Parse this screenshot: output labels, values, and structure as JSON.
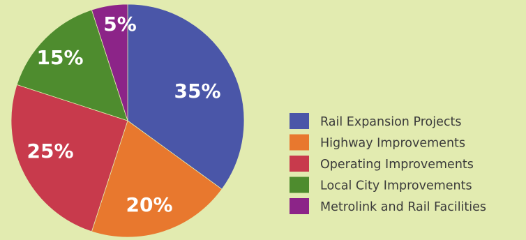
{
  "chart_data": {
    "type": "pie",
    "title": "",
    "legend_position": "right",
    "slices": [
      {
        "label": "Rail Expansion Projects",
        "value": 35,
        "display": "35%",
        "color": "#4a56a8"
      },
      {
        "label": "Highway Improvements",
        "value": 20,
        "display": "20%",
        "color": "#e8782e"
      },
      {
        "label": "Operating Improvements",
        "value": 25,
        "display": "25%",
        "color": "#c83a4c"
      },
      {
        "label": "Local City Improvements",
        "value": 15,
        "display": "15%",
        "color": "#4e8c2e"
      },
      {
        "label": "Metrolink and Rail Facilities",
        "value": 5,
        "display": "5%",
        "color": "#8c2488"
      }
    ]
  }
}
